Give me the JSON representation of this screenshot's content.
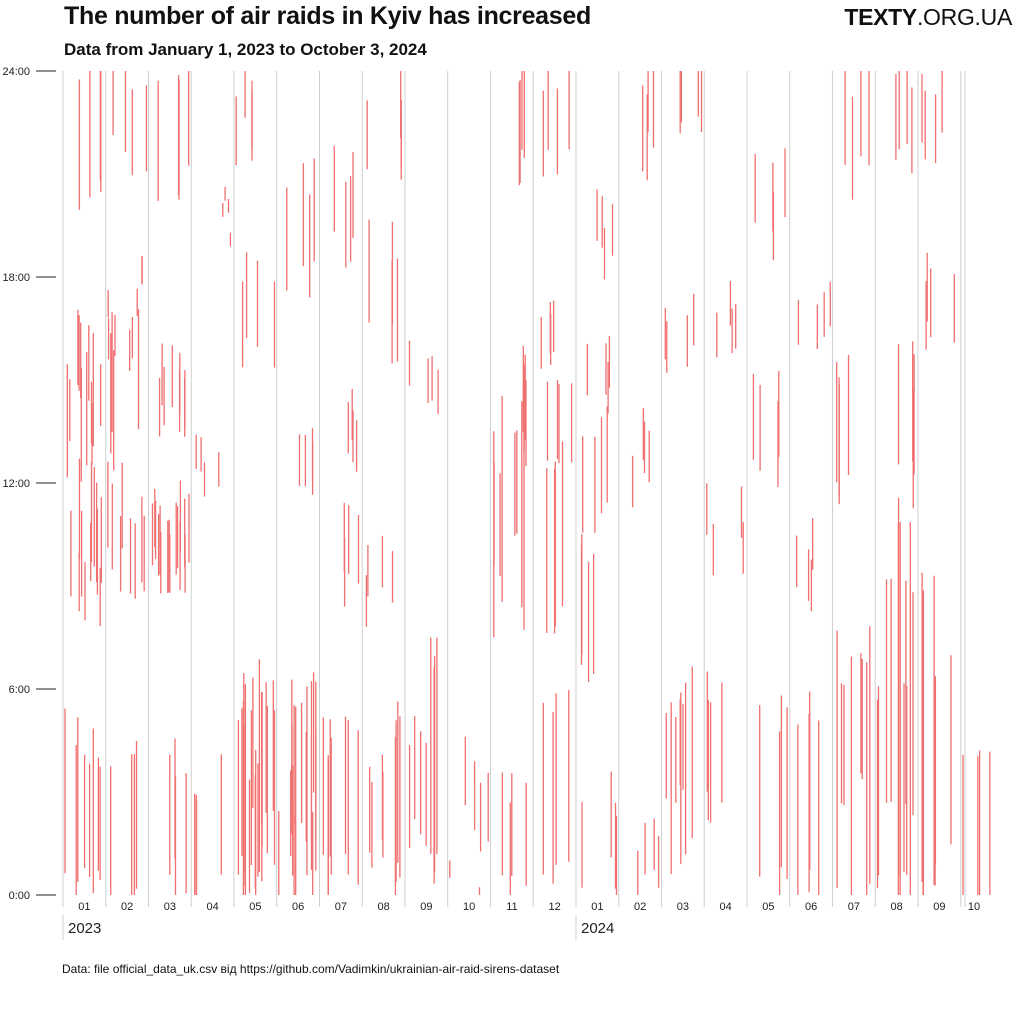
{
  "header": {
    "title": "The number of air raids in Kyiv has increased",
    "subtitle": "Data from January 1, 2023 to October 3, 2024",
    "logo_brand": "TEXTY",
    "logo_domain": ".ORG.UA"
  },
  "footer": {
    "source": "Data: file official_data_uk.csv від https://github.com/Vadimkin/ukrainian-air-raid-sirens-dataset"
  },
  "chart_data": {
    "type": "strip",
    "x_range": [
      "2023-01-01",
      "2024-10-03"
    ],
    "y_range": [
      0,
      24
    ],
    "y_ticks": [
      {
        "value": 0,
        "label": "0:00"
      },
      {
        "value": 6,
        "label": "6:00"
      },
      {
        "value": 12,
        "label": "12:00"
      },
      {
        "value": 18,
        "label": "18:00"
      },
      {
        "value": 24,
        "label": "24:00"
      }
    ],
    "month_labels": [
      "01",
      "02",
      "03",
      "04",
      "05",
      "06",
      "07",
      "08",
      "09",
      "10",
      "11",
      "12",
      "01",
      "02",
      "03",
      "04",
      "05",
      "06",
      "07",
      "08",
      "09",
      "10"
    ],
    "years": [
      {
        "label": "2023",
        "month_index": 0
      },
      {
        "label": "2024",
        "month_index": 12
      }
    ],
    "grid": true,
    "colors": {
      "alert": "#ef6f6f",
      "grid": "#cfcfcf",
      "axis": "#222222"
    },
    "series": [
      {
        "values": [
          {
            "m": 0,
            "s": 0.0,
            "e": 4.8
          },
          {
            "m": 0,
            "s": 9.5,
            "e": 12.4
          },
          {
            "m": 0,
            "s": 13.2,
            "e": 15.0
          },
          {
            "m": 0,
            "s": 20.2,
            "e": 24.0
          },
          {
            "m": 0,
            "s": 9.0,
            "e": 11.5
          },
          {
            "m": 0,
            "s": 12.5,
            "e": 15.8
          },
          {
            "m": 0,
            "s": 8.5,
            "e": 10.2
          },
          {
            "m": 0,
            "s": 14.8,
            "e": 17.0
          },
          {
            "m": 0,
            "s": 0.5,
            "e": 3.8
          },
          {
            "m": 1,
            "s": 9.0,
            "e": 11.2
          },
          {
            "m": 1,
            "s": 13.0,
            "e": 16.5
          },
          {
            "m": 1,
            "s": 21.5,
            "e": 24.0
          },
          {
            "m": 1,
            "s": 17.2,
            "e": 18.0
          },
          {
            "m": 1,
            "s": 0.2,
            "e": 4.5
          },
          {
            "m": 1,
            "s": 9.5,
            "e": 12.0
          },
          {
            "m": 1,
            "s": 15.0,
            "e": 16.2
          },
          {
            "m": 2,
            "s": 9.2,
            "e": 11.0
          },
          {
            "m": 2,
            "s": 9.5,
            "e": 11.2
          },
          {
            "m": 2,
            "s": 9.0,
            "e": 11.0
          },
          {
            "m": 2,
            "s": 13.5,
            "e": 15.2
          },
          {
            "m": 2,
            "s": 20.5,
            "e": 24.0
          },
          {
            "m": 2,
            "s": 0.5,
            "e": 4.0
          },
          {
            "m": 2,
            "s": 9.3,
            "e": 11.4
          },
          {
            "m": 2,
            "s": 14.2,
            "e": 16.0
          },
          {
            "m": 3,
            "s": 12.0,
            "e": 13.0
          },
          {
            "m": 3,
            "s": 19.6,
            "e": 20.0
          },
          {
            "m": 3,
            "s": 0.0,
            "e": 3.5
          },
          {
            "m": 4,
            "s": 0.0,
            "e": 6.2
          },
          {
            "m": 4,
            "s": 1.0,
            "e": 5.5
          },
          {
            "m": 4,
            "s": 0.5,
            "e": 4.8
          },
          {
            "m": 4,
            "s": 16.0,
            "e": 18.5
          },
          {
            "m": 4,
            "s": 22.0,
            "e": 24.0
          },
          {
            "m": 4,
            "s": 2.0,
            "e": 5.8
          },
          {
            "m": 4,
            "s": 0.2,
            "e": 3.5
          },
          {
            "m": 5,
            "s": 0.0,
            "e": 5.5
          },
          {
            "m": 5,
            "s": 1.2,
            "e": 4.4
          },
          {
            "m": 5,
            "s": 18.0,
            "e": 21.0
          },
          {
            "m": 5,
            "s": 12.0,
            "e": 13.5
          },
          {
            "m": 5,
            "s": 2.5,
            "e": 6.0
          },
          {
            "m": 5,
            "s": 0.5,
            "e": 3.0
          },
          {
            "m": 6,
            "s": 0.0,
            "e": 4.5
          },
          {
            "m": 6,
            "s": 19.0,
            "e": 21.5
          },
          {
            "m": 6,
            "s": 9.0,
            "e": 11.0
          },
          {
            "m": 6,
            "s": 1.0,
            "e": 5.0
          },
          {
            "m": 6,
            "s": 13.0,
            "e": 14.5
          },
          {
            "m": 7,
            "s": 0.5,
            "e": 5.2
          },
          {
            "m": 7,
            "s": 16.0,
            "e": 19.0
          },
          {
            "m": 7,
            "s": 21.5,
            "e": 23.5
          },
          {
            "m": 7,
            "s": 1.5,
            "e": 4.0
          },
          {
            "m": 7,
            "s": 8.5,
            "e": 10.0
          },
          {
            "m": 8,
            "s": 0.5,
            "e": 6.8
          },
          {
            "m": 8,
            "s": 14.5,
            "e": 15.8
          },
          {
            "m": 8,
            "s": 2.0,
            "e": 5.0
          },
          {
            "m": 9,
            "s": 0.0,
            "e": 0.5
          },
          {
            "m": 9,
            "s": 2.0,
            "e": 4.0
          },
          {
            "m": 10,
            "s": 8.0,
            "e": 14.0
          },
          {
            "m": 10,
            "s": 0.0,
            "e": 3.0
          },
          {
            "m": 10,
            "s": 21.0,
            "e": 24.0
          },
          {
            "m": 10,
            "s": 13.0,
            "e": 15.5
          },
          {
            "m": 10,
            "s": 10.0,
            "e": 13.0
          },
          {
            "m": 11,
            "s": 0.5,
            "e": 5.5
          },
          {
            "m": 11,
            "s": 8.0,
            "e": 12.8
          },
          {
            "m": 11,
            "s": 12.5,
            "e": 14.8
          },
          {
            "m": 11,
            "s": 21.5,
            "e": 24.0
          },
          {
            "m": 11,
            "s": 16.0,
            "e": 17.5
          },
          {
            "m": 12,
            "s": 6.5,
            "e": 10.0
          },
          {
            "m": 12,
            "s": 11.0,
            "e": 13.8
          },
          {
            "m": 12,
            "s": 18.5,
            "e": 20.0
          },
          {
            "m": 12,
            "s": 0.5,
            "e": 3.0
          },
          {
            "m": 12,
            "s": 14.5,
            "e": 16.0
          },
          {
            "m": 13,
            "s": 12.0,
            "e": 13.5
          },
          {
            "m": 13,
            "s": 21.5,
            "e": 24.0
          },
          {
            "m": 13,
            "s": 0.5,
            "e": 2.0
          },
          {
            "m": 14,
            "s": 1.0,
            "e": 6.0
          },
          {
            "m": 14,
            "s": 15.5,
            "e": 17.0
          },
          {
            "m": 14,
            "s": 3.0,
            "e": 5.5
          },
          {
            "m": 14,
            "s": 22.0,
            "e": 24.0
          },
          {
            "m": 15,
            "s": 2.5,
            "e": 6.0
          },
          {
            "m": 15,
            "s": 16.2,
            "e": 17.5
          },
          {
            "m": 15,
            "s": 10.0,
            "e": 11.5
          },
          {
            "m": 16,
            "s": 0.5,
            "e": 5.5
          },
          {
            "m": 16,
            "s": 12.5,
            "e": 15.0
          },
          {
            "m": 16,
            "s": 19.0,
            "e": 21.0
          },
          {
            "m": 17,
            "s": 0.0,
            "e": 5.2
          },
          {
            "m": 17,
            "s": 16.5,
            "e": 17.8
          },
          {
            "m": 17,
            "s": 9.0,
            "e": 10.5
          },
          {
            "m": 18,
            "s": 0.0,
            "e": 7.5
          },
          {
            "m": 18,
            "s": 21.0,
            "e": 24.0
          },
          {
            "m": 18,
            "s": 12.0,
            "e": 15.5
          },
          {
            "m": 18,
            "s": 3.0,
            "e": 6.5
          },
          {
            "m": 19,
            "s": 0.0,
            "e": 11.0
          },
          {
            "m": 19,
            "s": 2.0,
            "e": 8.5
          },
          {
            "m": 19,
            "s": 21.5,
            "e": 24.0
          },
          {
            "m": 19,
            "s": 0.5,
            "e": 6.0
          },
          {
            "m": 19,
            "s": 12.0,
            "e": 15.5
          },
          {
            "m": 20,
            "s": 0.0,
            "e": 9.0
          },
          {
            "m": 20,
            "s": 1.0,
            "e": 6.5
          },
          {
            "m": 20,
            "s": 22.0,
            "e": 24.0
          },
          {
            "m": 20,
            "s": 16.0,
            "e": 18.0
          },
          {
            "m": 21,
            "s": 0.0,
            "e": 4.5
          }
        ]
      }
    ]
  }
}
